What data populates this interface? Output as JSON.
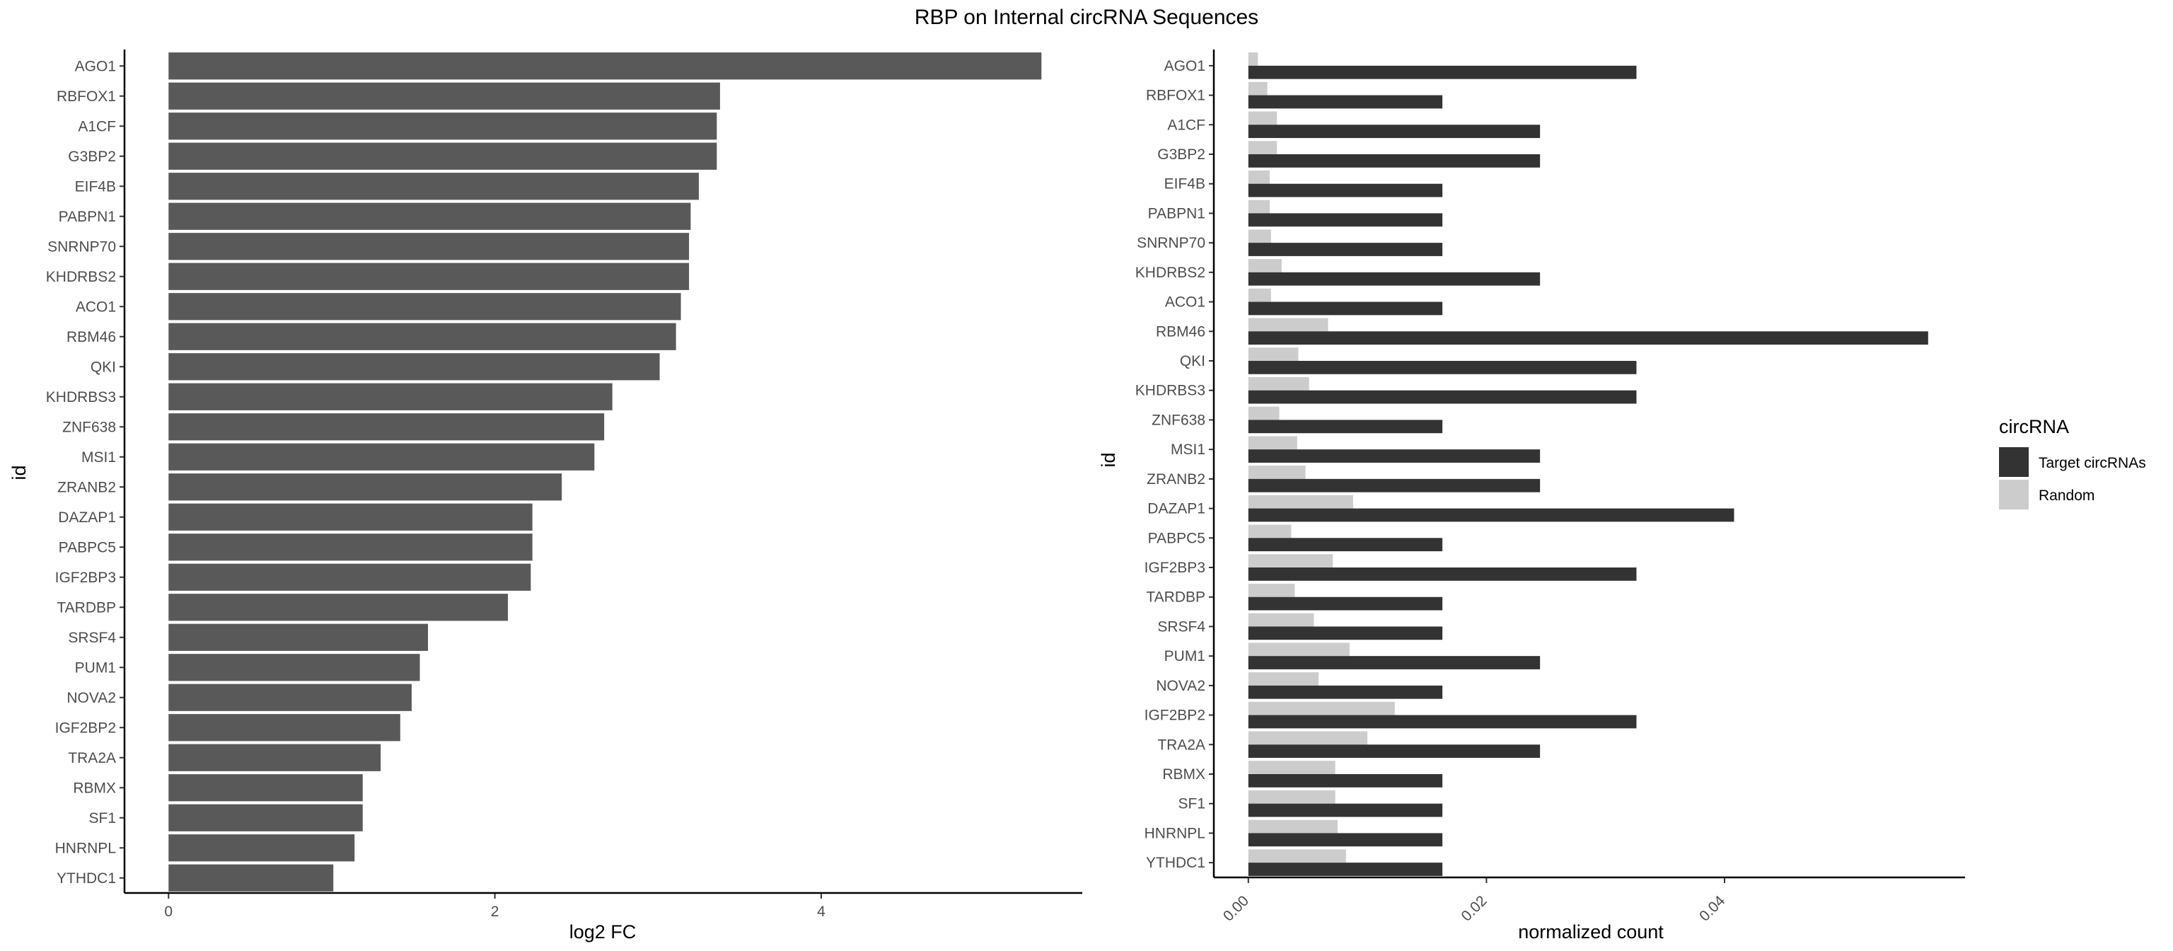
{
  "title": "RBP on Internal circRNA Sequences",
  "left_panel": {
    "chart_data": {
      "type": "bar",
      "orientation": "horizontal",
      "categories": [
        "AGO1",
        "RBFOX1",
        "A1CF",
        "G3BP2",
        "EIF4B",
        "PABPN1",
        "SNRNP70",
        "KHDRBS2",
        "ACO1",
        "RBM46",
        "QKI",
        "KHDRBS3",
        "ZNF638",
        "MSI1",
        "ZRANB2",
        "DAZAP1",
        "PABPC5",
        "IGF2BP3",
        "TARDBP",
        "SRSF4",
        "PUM1",
        "NOVA2",
        "IGF2BP2",
        "TRA2A",
        "RBMX",
        "SF1",
        "HNRNPL",
        "YTHDC1"
      ],
      "values": [
        5.35,
        3.38,
        3.36,
        3.36,
        3.25,
        3.2,
        3.19,
        3.19,
        3.14,
        3.11,
        3.01,
        2.72,
        2.67,
        2.61,
        2.41,
        2.23,
        2.23,
        2.22,
        2.08,
        1.59,
        1.54,
        1.49,
        1.42,
        1.3,
        1.19,
        1.19,
        1.14,
        1.01
      ],
      "color": "#595959",
      "xlabel": "log2 FC",
      "ylabel": "id",
      "xlim": [
        -0.27,
        5.6
      ],
      "x_ticks": [
        "0",
        "2",
        "4"
      ],
      "x_tick_values": [
        0,
        2,
        4
      ],
      "grid": false
    }
  },
  "right_panel": {
    "chart_data": {
      "type": "bar",
      "orientation": "horizontal",
      "grouped": true,
      "categories": [
        "AGO1",
        "RBFOX1",
        "A1CF",
        "G3BP2",
        "EIF4B",
        "PABPN1",
        "SNRNP70",
        "KHDRBS2",
        "ACO1",
        "RBM46",
        "QKI",
        "KHDRBS3",
        "ZNF638",
        "MSI1",
        "ZRANB2",
        "DAZAP1",
        "PABPC5",
        "IGF2BP3",
        "TARDBP",
        "SRSF4",
        "PUM1",
        "NOVA2",
        "IGF2BP2",
        "TRA2A",
        "RBMX",
        "SF1",
        "HNRNPL",
        "YTHDC1"
      ],
      "series": [
        {
          "name": "Target circRNAs",
          "color": "#333333",
          "values": [
            0.0326,
            0.0163,
            0.0245,
            0.0245,
            0.0163,
            0.0163,
            0.0163,
            0.0245,
            0.0163,
            0.0571,
            0.0326,
            0.0326,
            0.0163,
            0.0245,
            0.0245,
            0.0408,
            0.0163,
            0.0326,
            0.0163,
            0.0163,
            0.0245,
            0.0163,
            0.0326,
            0.0245,
            0.0163,
            0.0163,
            0.0163,
            0.0163
          ]
        },
        {
          "name": "Random",
          "color": "#cccccc",
          "values": [
            0.0008,
            0.0016,
            0.0024,
            0.0024,
            0.0018,
            0.0018,
            0.0019,
            0.0028,
            0.0019,
            0.0067,
            0.0042,
            0.0051,
            0.0026,
            0.0041,
            0.0048,
            0.0088,
            0.0036,
            0.0071,
            0.0039,
            0.0055,
            0.0085,
            0.0059,
            0.0123,
            0.01,
            0.0073,
            0.0073,
            0.0075,
            0.0082
          ]
        }
      ],
      "xlabel": "normalized count",
      "ylabel": "id",
      "xlim": [
        -0.0029,
        0.0602
      ],
      "x_ticks": [
        "0.00",
        "0.02",
        "0.04"
      ],
      "x_tick_values": [
        0,
        0.02,
        0.04
      ],
      "legend_title": "circRNA",
      "legend_position": "right",
      "grid": false
    }
  }
}
